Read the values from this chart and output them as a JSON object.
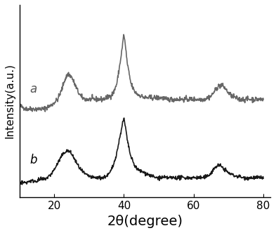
{
  "title": "",
  "xlabel": "2θ(degree)",
  "ylabel": "Intensity(a.u.)",
  "xlim": [
    10,
    82
  ],
  "ylim": [
    -0.05,
    1.15
  ],
  "label_a": "a",
  "label_b": "b",
  "color_a": "#555555",
  "color_b": "#000000",
  "background_color": "#ffffff",
  "curve_a": {
    "x": [
      10,
      11,
      12,
      13,
      14,
      15,
      16,
      17,
      18,
      19,
      20,
      21,
      22,
      23,
      24,
      25,
      26,
      27,
      28,
      29,
      30,
      31,
      32,
      33,
      34,
      35,
      36,
      37,
      38,
      39,
      39.5,
      40,
      40.5,
      41,
      42,
      43,
      44,
      45,
      46,
      47,
      48,
      49,
      50,
      51,
      52,
      53,
      54,
      55,
      56,
      57,
      58,
      59,
      60,
      61,
      62,
      63,
      64,
      65,
      66,
      67,
      68,
      69,
      70,
      71,
      72,
      73,
      74,
      75,
      76,
      77,
      78,
      79,
      80
    ],
    "y": [
      0.52,
      0.51,
      0.5,
      0.5,
      0.5,
      0.5,
      0.5,
      0.5,
      0.51,
      0.52,
      0.54,
      0.56,
      0.61,
      0.68,
      0.72,
      0.7,
      0.65,
      0.6,
      0.57,
      0.56,
      0.56,
      0.56,
      0.56,
      0.56,
      0.56,
      0.57,
      0.58,
      0.6,
      0.66,
      0.8,
      0.88,
      0.97,
      0.88,
      0.78,
      0.66,
      0.61,
      0.59,
      0.58,
      0.57,
      0.57,
      0.57,
      0.57,
      0.57,
      0.57,
      0.56,
      0.56,
      0.56,
      0.56,
      0.56,
      0.56,
      0.56,
      0.56,
      0.56,
      0.56,
      0.56,
      0.56,
      0.57,
      0.58,
      0.61,
      0.64,
      0.65,
      0.63,
      0.6,
      0.58,
      0.57,
      0.56,
      0.56,
      0.56,
      0.56,
      0.56,
      0.56,
      0.56,
      0.56
    ]
  },
  "curve_b": {
    "x": [
      10,
      11,
      12,
      13,
      14,
      15,
      16,
      17,
      18,
      19,
      20,
      21,
      22,
      23,
      24,
      25,
      26,
      27,
      28,
      29,
      30,
      31,
      32,
      33,
      34,
      35,
      36,
      37,
      38,
      39,
      39.5,
      40,
      40.5,
      41,
      42,
      43,
      44,
      45,
      46,
      47,
      48,
      49,
      50,
      51,
      52,
      53,
      54,
      55,
      56,
      57,
      58,
      59,
      60,
      61,
      62,
      63,
      64,
      65,
      66,
      67,
      68,
      69,
      70,
      71,
      72,
      73,
      74,
      75,
      76,
      77,
      78,
      79,
      80
    ],
    "y": [
      0.04,
      0.04,
      0.04,
      0.05,
      0.05,
      0.05,
      0.06,
      0.06,
      0.07,
      0.09,
      0.12,
      0.16,
      0.2,
      0.23,
      0.24,
      0.22,
      0.18,
      0.14,
      0.11,
      0.09,
      0.08,
      0.07,
      0.07,
      0.07,
      0.07,
      0.08,
      0.1,
      0.15,
      0.23,
      0.34,
      0.4,
      0.44,
      0.38,
      0.3,
      0.2,
      0.15,
      0.12,
      0.11,
      0.1,
      0.09,
      0.08,
      0.07,
      0.07,
      0.07,
      0.07,
      0.07,
      0.07,
      0.07,
      0.07,
      0.07,
      0.07,
      0.07,
      0.07,
      0.07,
      0.07,
      0.07,
      0.08,
      0.1,
      0.13,
      0.15,
      0.14,
      0.12,
      0.1,
      0.09,
      0.08,
      0.08,
      0.07,
      0.07,
      0.07,
      0.07,
      0.07,
      0.07,
      0.07
    ]
  },
  "xticks": [
    20,
    40,
    60,
    80
  ],
  "xlabel_fontsize": 14,
  "ylabel_fontsize": 11,
  "label_fontsize": 12,
  "linewidth": 1.2
}
